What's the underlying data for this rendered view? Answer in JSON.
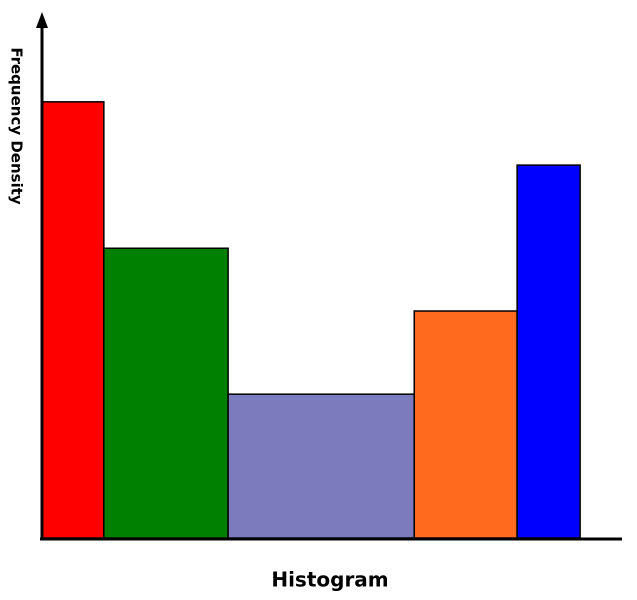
{
  "chart_data": {
    "type": "histogram",
    "title": "Histogram",
    "y_label": "Frequency Density",
    "bins": [
      0,
      1.07,
      3.22,
      6.44,
      8.22,
      9.31
    ],
    "values": [
      8.34,
      5.54,
      2.75,
      4.34,
      7.13
    ],
    "colors": [
      "#ff0000",
      "#008000",
      "#7b7bbd",
      "#ff6a1f",
      "#0000ff"
    ],
    "xlim": [
      0,
      10
    ],
    "ylim": [
      0,
      10
    ]
  }
}
